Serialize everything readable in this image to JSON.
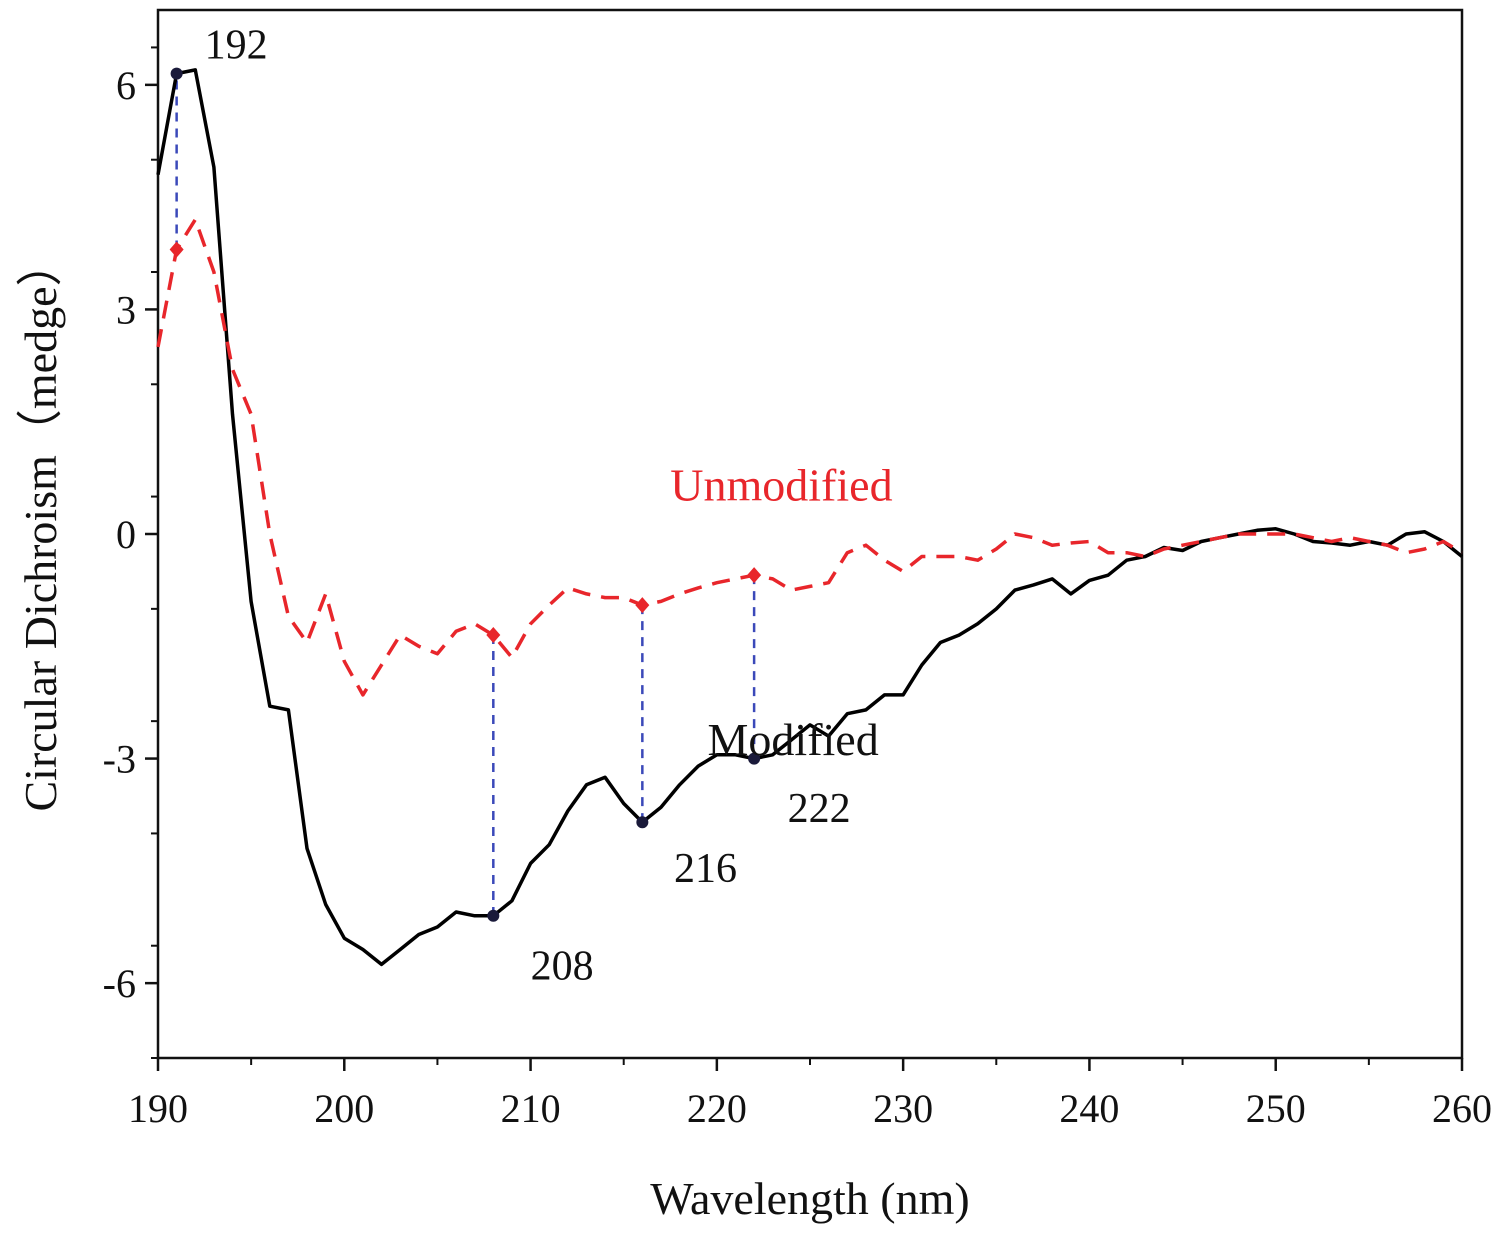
{
  "chart_data": {
    "type": "line",
    "xlabel": "Wavelength (nm)",
    "ylabel": "Circular Dichroism（medge）",
    "xlim": [
      190,
      260
    ],
    "ylim": [
      -7,
      7
    ],
    "xticks": [
      190,
      200,
      210,
      220,
      230,
      240,
      250,
      260
    ],
    "yticks": [
      -6,
      -3,
      0,
      3,
      6
    ],
    "grid": false,
    "series": [
      {
        "name": "Modified",
        "color": "#000000",
        "linestyle": "solid",
        "x": [
          190,
          191,
          192,
          193,
          194,
          195,
          196,
          197,
          198,
          199,
          200,
          201,
          202,
          203,
          204,
          205,
          206,
          207,
          208,
          209,
          210,
          211,
          212,
          213,
          214,
          215,
          216,
          217,
          218,
          219,
          220,
          221,
          222,
          223,
          224,
          225,
          226,
          227,
          228,
          229,
          230,
          231,
          232,
          233,
          234,
          235,
          236,
          237,
          238,
          239,
          240,
          241,
          242,
          243,
          244,
          245,
          246,
          247,
          248,
          249,
          250,
          251,
          252,
          253,
          254,
          255,
          256,
          257,
          258,
          259,
          260
        ],
        "y": [
          4.8,
          6.15,
          6.2,
          4.9,
          1.6,
          -0.9,
          -2.3,
          -2.35,
          -4.2,
          -4.95,
          -5.4,
          -5.55,
          -5.75,
          -5.55,
          -5.35,
          -5.25,
          -5.05,
          -5.1,
          -5.1,
          -4.9,
          -4.4,
          -4.15,
          -3.7,
          -3.35,
          -3.25,
          -3.6,
          -3.85,
          -3.65,
          -3.35,
          -3.1,
          -2.95,
          -2.95,
          -3.0,
          -2.95,
          -2.75,
          -2.55,
          -2.7,
          -2.4,
          -2.35,
          -2.15,
          -2.15,
          -1.75,
          -1.45,
          -1.35,
          -1.2,
          -1.0,
          -0.75,
          -0.68,
          -0.6,
          -0.8,
          -0.62,
          -0.55,
          -0.35,
          -0.3,
          -0.18,
          -0.22,
          -0.1,
          -0.05,
          0.0,
          0.05,
          0.07,
          0.0,
          -0.1,
          -0.12,
          -0.15,
          -0.1,
          -0.15,
          0.0,
          0.03,
          -0.1,
          -0.3
        ]
      },
      {
        "name": "Unmodified",
        "color": "#e8262b",
        "linestyle": "dashed",
        "x": [
          190,
          191,
          192,
          193,
          194,
          195,
          196,
          197,
          198,
          199,
          200,
          201,
          202,
          203,
          204,
          205,
          206,
          207,
          208,
          209,
          210,
          211,
          212,
          213,
          214,
          215,
          216,
          217,
          218,
          219,
          220,
          221,
          222,
          223,
          224,
          225,
          226,
          227,
          228,
          229,
          230,
          231,
          232,
          233,
          234,
          235,
          236,
          237,
          238,
          239,
          240,
          241,
          242,
          243,
          244,
          245,
          246,
          247,
          248,
          249,
          250,
          251,
          252,
          253,
          254,
          255,
          256,
          257,
          258,
          259,
          260
        ],
        "y": [
          2.5,
          3.8,
          4.2,
          3.5,
          2.2,
          1.6,
          0.0,
          -1.1,
          -1.45,
          -0.8,
          -1.7,
          -2.15,
          -1.75,
          -1.35,
          -1.5,
          -1.6,
          -1.3,
          -1.2,
          -1.35,
          -1.65,
          -1.2,
          -0.95,
          -0.72,
          -0.8,
          -0.85,
          -0.85,
          -0.95,
          -0.9,
          -0.8,
          -0.72,
          -0.65,
          -0.6,
          -0.55,
          -0.6,
          -0.75,
          -0.7,
          -0.65,
          -0.25,
          -0.15,
          -0.35,
          -0.5,
          -0.3,
          -0.3,
          -0.3,
          -0.35,
          -0.2,
          0.0,
          -0.05,
          -0.15,
          -0.12,
          -0.1,
          -0.25,
          -0.25,
          -0.3,
          -0.2,
          -0.15,
          -0.1,
          -0.05,
          0.0,
          0.0,
          0.0,
          0.0,
          -0.05,
          -0.1,
          -0.05,
          -0.1,
          -0.15,
          -0.25,
          -0.2,
          -0.1,
          -0.25
        ]
      }
    ],
    "series_labels": [
      {
        "series": "Unmodified",
        "text": "Unmodified",
        "x": 217.5,
        "y": 0.45,
        "color": "#e8262b"
      },
      {
        "series": "Modified",
        "text": "Modified",
        "x": 219.5,
        "y": -2.95,
        "color": "#111111"
      }
    ],
    "annotations": [
      {
        "label": "192",
        "x": 191,
        "y_modified": 6.15,
        "y_unmodified": 3.8,
        "label_x": 192.5,
        "label_y": 6.35
      },
      {
        "label": "208",
        "x": 208,
        "y_modified": -5.1,
        "y_unmodified": -1.35,
        "label_x": 210.0,
        "label_y": -5.95
      },
      {
        "label": "216",
        "x": 216,
        "y_modified": -3.85,
        "y_unmodified": -0.95,
        "label_x": 217.7,
        "label_y": -4.65
      },
      {
        "label": "222",
        "x": 222,
        "y_modified": -3.0,
        "y_unmodified": -0.55,
        "label_x": 223.8,
        "label_y": -3.85
      }
    ],
    "annotation_line_color": "#3b49b9",
    "marker_color_modified": "#1a1a3a",
    "marker_color_unmodified": "#e8262b"
  }
}
